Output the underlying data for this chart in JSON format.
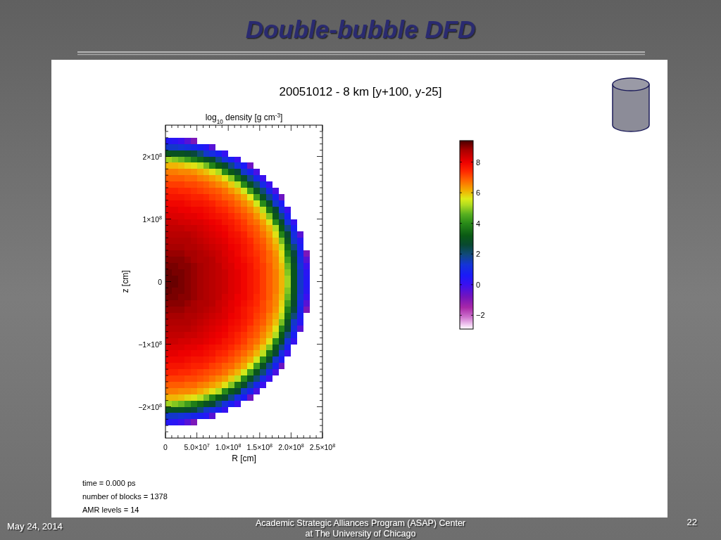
{
  "chart_data": {
    "type": "heatmap",
    "title": "Double-bubble DFD",
    "subtitle": "20051012 - 8 km [y+100, y-25]",
    "clabel": "log$_{10}$ density [g cm$^{-3}$]",
    "xlabel": "R [cm]",
    "ylabel": "z [cm]",
    "annotations": [
      "time = 0.000 ps",
      "number of blocks = 1378",
      "AMR levels = 14",
      "May 24, 2014",
      "Academic Strategic Alliances Program (ASAP) Center at The University of Chicago",
      "22"
    ],
    "xlim": [
      0,
      250000000.0
    ],
    "ylim": [
      -250000000.0,
      250000000.0
    ],
    "xticks": [
      0,
      {
        "value": 10000000.0,
        "label": null
      },
      {
        "value": 20000000.0,
        "label": null
      },
      {
        "value": 30000000.0,
        "label": null
      },
      {
        "value": 40000000.0,
        "label": null
      },
      {
        "value": 50000000.0,
        "label": "5.0×10$^{7}$"
      },
      {
        "value": 60000000.0,
        "label": null
      },
      {
        "value": 70000000.0,
        "label": null
      },
      {
        "value": 80000000.0,
        "label": null
      },
      {
        "value": 90000000.0,
        "label": null
      },
      {
        "value": 100000000.0,
        "label": "1.0×10$^{8}$"
      },
      {
        "value": 110000000.0,
        "label": null
      },
      {
        "value": 120000000.0,
        "label": null
      },
      {
        "value": 130000000.0,
        "label": null
      },
      {
        "value": 140000000.0,
        "label": null
      },
      {
        "value": 150000000.0,
        "label": "1.5×10$^{8}$"
      },
      {
        "value": 160000000.0,
        "label": null
      },
      {
        "value": 170000000.0,
        "label": null
      },
      {
        "value": 180000000.0,
        "label": null
      },
      {
        "value": 190000000.0,
        "label": null
      },
      {
        "value": 200000000.0,
        "label": "2.0×10$^{8}$"
      },
      {
        "value": 210000000.0,
        "label": null
      },
      {
        "value": 220000000.0,
        "label": null
      },
      {
        "value": 230000000.0,
        "label": null
      },
      {
        "value": 240000000.0,
        "label": null
      },
      {
        "value": 250000000.0,
        "label": "2.5×10$^{8}$"
      }
    ],
    "yticks": [
      {
        "value": -240000000.0,
        "label": null
      },
      {
        "value": -230000000.0,
        "label": null
      },
      {
        "value": -220000000.0,
        "label": null
      },
      {
        "value": -210000000.0,
        "label": null
      },
      {
        "value": -200000000.0,
        "label": "−2×10$^{8}$"
      },
      {
        "value": -190000000.0,
        "label": null
      },
      {
        "value": -180000000.0,
        "label": null
      },
      {
        "value": -170000000.0,
        "label": null
      },
      {
        "value": -160000000.0,
        "label": null
      },
      {
        "value": -150000000.0,
        "label": null
      },
      {
        "value": -140000000.0,
        "label": null
      },
      {
        "value": -130000000.0,
        "label": null
      },
      {
        "value": -120000000.0,
        "label": null
      },
      {
        "value": -110000000.0,
        "label": null
      },
      {
        "value": -100000000.0,
        "label": "−1×10$^{8}$"
      },
      {
        "value": -90000000.0,
        "label": null
      },
      {
        "value": -80000000.0,
        "label": null
      },
      {
        "value": -70000000.0,
        "label": null
      },
      {
        "value": -60000000.0,
        "label": null
      },
      {
        "value": -50000000.0,
        "label": null
      },
      {
        "value": -40000000.0,
        "label": null
      },
      {
        "value": -30000000.0,
        "label": null
      },
      {
        "value": -20000000.0,
        "label": null
      },
      {
        "value": -10000000.0,
        "label": null
      },
      0,
      {
        "value": 10000000.0,
        "label": null
      },
      {
        "value": 20000000.0,
        "label": null
      },
      {
        "value": 30000000.0,
        "label": null
      },
      {
        "value": 40000000.0,
        "label": null
      },
      {
        "value": 50000000.0,
        "label": null
      },
      {
        "value": 60000000.0,
        "label": null
      },
      {
        "value": 70000000.0,
        "label": null
      },
      {
        "value": 80000000.0,
        "label": null
      },
      {
        "value": 90000000.0,
        "label": null
      },
      {
        "value": 100000000.0,
        "label": "1×10$^{8}$"
      },
      {
        "value": 110000000.0,
        "label": null
      },
      {
        "value": 120000000.0,
        "label": null
      },
      {
        "value": 130000000.0,
        "label": null
      },
      {
        "value": 140000000.0,
        "label": null
      },
      {
        "value": 150000000.0,
        "label": null
      },
      {
        "value": 160000000.0,
        "label": null
      },
      {
        "value": 170000000.0,
        "label": null
      },
      {
        "value": 180000000.0,
        "label": null
      },
      {
        "value": 190000000.0,
        "label": null
      },
      {
        "value": 200000000.0,
        "label": "2×10$^{8}$"
      },
      {
        "value": 210000000.0,
        "label": null
      },
      {
        "value": 220000000.0,
        "label": null
      },
      {
        "value": 230000000.0,
        "label": null
      },
      {
        "value": 240000000.0,
        "label": null
      }
    ],
    "clim": [
      -2.9,
      9.4
    ],
    "cticks": [
      -2,
      0,
      2,
      4,
      6,
      8
    ],
    "cells": [
      [
        -2.9,
        -2.9,
        -2.9,
        -2.9,
        -2.9,
        -2.9,
        -2.9,
        -2.9,
        -2.9,
        -2.9,
        -2.9,
        -2.9,
        -2.9,
        -2.9,
        -2.9,
        -2.9,
        -2.9,
        -2.9,
        -2.9,
        -2.9,
        -2.9,
        -2.9,
        -2.9,
        -2.9,
        -2.9
      ],
      [
        -2.9,
        -2.9,
        -2.9,
        -2.9,
        -2.9,
        -2.9,
        -2.9,
        -2.9,
        -2.9,
        -2.9,
        -2.9,
        -2.9,
        -2.9,
        -2.9,
        -2.9,
        -2.9,
        -2.9,
        -2.9,
        -2.9,
        -2.9,
        -2.9,
        -2.9,
        -2.9,
        -2.9,
        -2.9
      ],
      [
        0.4,
        0.3,
        0.0,
        -0.4,
        -0.9,
        -2.9,
        -2.9,
        -2.9,
        -2.9,
        -2.9,
        -2.9,
        -2.9,
        -2.9,
        -2.9,
        -2.9,
        -2.9,
        -2.9,
        -2.9,
        -2.9,
        -2.9,
        -2.9,
        -2.9,
        -2.9,
        -2.9,
        -2.9
      ],
      [
        1.4,
        1.4,
        1.3,
        1.1,
        0.9,
        0.7,
        0.4,
        -0.4,
        -2.9,
        -2.9,
        -2.9,
        -2.9,
        -2.9,
        -2.9,
        -2.9,
        -2.9,
        -2.9,
        -2.9,
        -2.9,
        -2.9,
        -2.9,
        -2.9,
        -2.9,
        -2.9,
        -2.9
      ],
      [
        3.0,
        2.9,
        2.9,
        2.7,
        2.5,
        2.0,
        1.4,
        1.1,
        0.7,
        0.1,
        -2.9,
        -2.9,
        -2.9,
        -2.9,
        -2.9,
        -2.9,
        -2.9,
        -2.9,
        -2.9,
        -2.9,
        -2.9,
        -2.9,
        -2.9,
        -2.9,
        -2.9
      ],
      [
        5.1,
        4.9,
        4.7,
        4.3,
        3.8,
        3.4,
        2.9,
        2.6,
        1.9,
        1.2,
        0.7,
        0.0,
        -2.9,
        -2.9,
        -2.9,
        -2.9,
        -2.9,
        -2.9,
        -2.9,
        -2.9,
        -2.9,
        -2.9,
        -2.9,
        -2.9,
        -2.9
      ],
      [
        6.1,
        6.1,
        6.0,
        5.8,
        5.7,
        5.3,
        4.8,
        3.9,
        3.2,
        2.7,
        1.9,
        1.1,
        0.6,
        -0.7,
        -2.9,
        -2.9,
        -2.9,
        -2.9,
        -2.9,
        -2.9,
        -2.9,
        -2.9,
        -2.9,
        -2.9,
        -2.9
      ],
      [
        6.6,
        6.6,
        6.5,
        6.5,
        6.4,
        6.2,
        6.0,
        5.7,
        5.2,
        4.0,
        3.1,
        2.6,
        1.4,
        0.8,
        -0.2,
        -2.9,
        -2.9,
        -2.9,
        -2.9,
        -2.9,
        -2.9,
        -2.9,
        -2.9,
        -2.9,
        -2.9
      ],
      [
        6.9,
        6.9,
        6.9,
        6.8,
        6.8,
        6.6,
        6.5,
        6.3,
        6.1,
        5.7,
        4.9,
        3.6,
        2.8,
        1.8,
        0.9,
        0.0,
        -2.9,
        -2.9,
        -2.9,
        -2.9,
        -2.9,
        -2.9,
        -2.9,
        -2.9,
        -2.9
      ],
      [
        7.2,
        7.2,
        7.2,
        7.1,
        7.1,
        7.0,
        6.9,
        6.7,
        6.5,
        6.3,
        5.9,
        5.3,
        4.0,
        2.9,
        2.0,
        1.0,
        0.0,
        -2.9,
        -2.9,
        -2.9,
        -2.9,
        -2.9,
        -2.9,
        -2.9,
        -2.9
      ],
      [
        7.5,
        7.5,
        7.4,
        7.4,
        7.3,
        7.2,
        7.1,
        7.0,
        6.9,
        6.7,
        6.4,
        6.1,
        5.5,
        4.3,
        3.0,
        2.0,
        0.9,
        -0.2,
        -2.9,
        -2.9,
        -2.9,
        -2.9,
        -2.9,
        -2.9,
        -2.9
      ],
      [
        7.7,
        7.7,
        7.7,
        7.6,
        7.5,
        7.5,
        7.4,
        7.2,
        7.1,
        6.9,
        6.8,
        6.5,
        6.2,
        5.6,
        4.3,
        2.9,
        1.8,
        0.8,
        -0.7,
        -2.9,
        -2.9,
        -2.9,
        -2.9,
        -2.9,
        -2.9
      ],
      [
        7.9,
        7.9,
        7.9,
        7.8,
        7.7,
        7.7,
        7.6,
        7.5,
        7.3,
        7.2,
        7.0,
        6.8,
        6.5,
        6.2,
        5.5,
        4.0,
        2.8,
        1.4,
        0.6,
        -2.9,
        -2.9,
        -2.9,
        -2.9,
        -2.9,
        -2.9
      ],
      [
        8.1,
        8.1,
        8.0,
        8.0,
        7.9,
        7.9,
        7.8,
        7.7,
        7.5,
        7.4,
        7.2,
        7.0,
        6.8,
        6.5,
        6.1,
        5.3,
        3.6,
        2.6,
        1.1,
        0.0,
        -2.9,
        -2.9,
        -2.9,
        -2.9,
        -2.9
      ],
      [
        8.2,
        8.2,
        8.2,
        8.1,
        8.1,
        8.0,
        7.9,
        7.8,
        7.7,
        7.6,
        7.4,
        7.2,
        7.0,
        6.8,
        6.4,
        5.9,
        4.9,
        3.1,
        1.9,
        0.7,
        -2.9,
        -2.9,
        -2.9,
        -2.9,
        -2.9
      ],
      [
        8.4,
        8.4,
        8.3,
        8.3,
        8.2,
        8.2,
        8.1,
        8.0,
        7.9,
        7.7,
        7.6,
        7.4,
        7.2,
        6.9,
        6.7,
        6.3,
        5.7,
        4.0,
        2.7,
        1.2,
        0.1,
        -2.9,
        -2.9,
        -2.9,
        -2.9
      ],
      [
        8.5,
        8.5,
        8.5,
        8.4,
        8.4,
        8.3,
        8.2,
        8.1,
        8.0,
        7.9,
        7.7,
        7.5,
        7.3,
        7.1,
        6.9,
        6.5,
        6.1,
        5.2,
        3.2,
        1.9,
        0.7,
        -2.9,
        -2.9,
        -2.9,
        -2.9
      ],
      [
        8.6,
        8.6,
        8.6,
        8.6,
        8.5,
        8.4,
        8.3,
        8.2,
        8.1,
        8.0,
        7.8,
        7.7,
        7.5,
        7.2,
        7.0,
        6.7,
        6.3,
        5.7,
        3.9,
        2.6,
        1.1,
        -0.4,
        -2.9,
        -2.9,
        -2.9
      ],
      [
        8.7,
        8.7,
        8.7,
        8.7,
        8.6,
        8.5,
        8.4,
        8.3,
        8.2,
        8.1,
        7.9,
        7.8,
        7.6,
        7.4,
        7.1,
        6.9,
        6.5,
        6.0,
        4.8,
        2.9,
        1.4,
        0.4,
        -2.9,
        -2.9,
        -2.9
      ],
      [
        8.8,
        8.8,
        8.8,
        8.7,
        8.7,
        8.6,
        8.5,
        8.4,
        8.3,
        8.2,
        8.0,
        7.9,
        7.7,
        7.5,
        7.2,
        7.0,
        6.6,
        6.2,
        5.3,
        3.4,
        2.0,
        0.7,
        -2.9,
        -2.9,
        -2.9
      ],
      [
        8.9,
        8.9,
        8.9,
        8.8,
        8.8,
        8.7,
        8.6,
        8.5,
        8.4,
        8.2,
        8.1,
        7.9,
        7.7,
        7.5,
        7.3,
        7.1,
        6.8,
        6.4,
        5.7,
        3.8,
        2.5,
        0.9,
        -0.9,
        -2.9,
        -2.9
      ],
      [
        9.0,
        9.0,
        9.0,
        8.9,
        8.8,
        8.7,
        8.7,
        8.6,
        8.4,
        8.3,
        8.1,
        8.0,
        7.8,
        7.6,
        7.4,
        7.1,
        6.8,
        6.5,
        5.8,
        4.3,
        2.7,
        1.1,
        -0.4,
        -2.9,
        -2.9
      ],
      [
        9.1,
        9.1,
        9.0,
        9.0,
        8.9,
        8.8,
        8.7,
        8.6,
        8.5,
        8.3,
        8.2,
        8.0,
        7.9,
        7.7,
        7.4,
        7.2,
        6.9,
        6.5,
        6.0,
        4.7,
        2.9,
        1.3,
        0.0,
        -2.9,
        -2.9
      ],
      [
        9.2,
        9.1,
        9.1,
        9.0,
        8.9,
        8.8,
        8.7,
        8.6,
        8.5,
        8.4,
        8.2,
        8.1,
        7.9,
        7.7,
        7.5,
        7.2,
        6.9,
        6.6,
        6.1,
        4.9,
        3.0,
        1.4,
        0.3,
        -2.9,
        -2.9
      ],
      [
        9.2,
        9.2,
        9.1,
        9.0,
        8.9,
        8.8,
        8.7,
        8.6,
        8.5,
        8.4,
        8.2,
        8.1,
        7.9,
        7.7,
        7.5,
        7.2,
        6.9,
        6.6,
        6.1,
        5.1,
        3.0,
        1.4,
        0.4,
        -2.9,
        -2.9
      ],
      [
        9.2,
        9.2,
        9.1,
        9.0,
        8.9,
        8.8,
        8.7,
        8.6,
        8.5,
        8.4,
        8.2,
        8.1,
        7.9,
        7.7,
        7.5,
        7.2,
        6.9,
        6.6,
        6.1,
        5.1,
        3.0,
        1.4,
        0.4,
        -2.9,
        -2.9
      ],
      [
        9.2,
        9.1,
        9.1,
        9.0,
        8.9,
        8.8,
        8.7,
        8.6,
        8.5,
        8.4,
        8.2,
        8.1,
        7.9,
        7.7,
        7.5,
        7.2,
        6.9,
        6.6,
        6.1,
        4.9,
        3.0,
        1.4,
        0.3,
        -2.9,
        -2.9
      ],
      [
        9.1,
        9.1,
        9.0,
        9.0,
        8.9,
        8.8,
        8.7,
        8.6,
        8.5,
        8.3,
        8.2,
        8.0,
        7.9,
        7.7,
        7.4,
        7.2,
        6.9,
        6.5,
        6.0,
        4.7,
        2.9,
        1.3,
        0.0,
        -2.9,
        -2.9
      ],
      [
        9.0,
        9.0,
        9.0,
        8.9,
        8.8,
        8.7,
        8.7,
        8.6,
        8.4,
        8.3,
        8.1,
        8.0,
        7.8,
        7.6,
        7.4,
        7.1,
        6.8,
        6.5,
        5.8,
        4.3,
        2.7,
        1.1,
        -0.4,
        -2.9,
        -2.9
      ],
      [
        8.9,
        8.9,
        8.9,
        8.8,
        8.8,
        8.7,
        8.6,
        8.5,
        8.4,
        8.2,
        8.1,
        7.9,
        7.7,
        7.5,
        7.3,
        7.1,
        6.8,
        6.4,
        5.7,
        3.8,
        2.5,
        0.9,
        -0.9,
        -2.9,
        -2.9
      ],
      [
        8.8,
        8.8,
        8.8,
        8.7,
        8.7,
        8.6,
        8.5,
        8.4,
        8.3,
        8.2,
        8.0,
        7.9,
        7.7,
        7.5,
        7.2,
        7.0,
        6.6,
        6.2,
        5.3,
        3.4,
        2.0,
        0.7,
        -2.9,
        -2.9,
        -2.9
      ],
      [
        8.7,
        8.7,
        8.7,
        8.7,
        8.6,
        8.5,
        8.4,
        8.3,
        8.2,
        8.1,
        7.9,
        7.8,
        7.6,
        7.4,
        7.1,
        6.9,
        6.5,
        6.0,
        4.8,
        2.9,
        1.4,
        0.4,
        -2.9,
        -2.9,
        -2.9
      ],
      [
        8.6,
        8.6,
        8.6,
        8.6,
        8.5,
        8.4,
        8.3,
        8.2,
        8.1,
        8.0,
        7.8,
        7.7,
        7.5,
        7.2,
        7.0,
        6.7,
        6.3,
        5.7,
        3.9,
        2.6,
        1.1,
        -0.4,
        -2.9,
        -2.9,
        -2.9
      ],
      [
        8.5,
        8.5,
        8.5,
        8.4,
        8.4,
        8.3,
        8.2,
        8.1,
        8.0,
        7.9,
        7.7,
        7.5,
        7.3,
        7.1,
        6.9,
        6.5,
        6.1,
        5.2,
        3.2,
        1.9,
        0.7,
        -2.9,
        -2.9,
        -2.9,
        -2.9
      ],
      [
        8.4,
        8.4,
        8.3,
        8.3,
        8.2,
        8.2,
        8.1,
        8.0,
        7.9,
        7.7,
        7.6,
        7.4,
        7.2,
        6.9,
        6.7,
        6.3,
        5.7,
        4.0,
        2.7,
        1.2,
        0.1,
        -2.9,
        -2.9,
        -2.9,
        -2.9
      ],
      [
        8.2,
        8.2,
        8.2,
        8.1,
        8.1,
        8.0,
        7.9,
        7.8,
        7.7,
        7.6,
        7.4,
        7.2,
        7.0,
        6.8,
        6.4,
        5.9,
        4.9,
        3.1,
        1.9,
        0.7,
        -2.9,
        -2.9,
        -2.9,
        -2.9,
        -2.9
      ],
      [
        8.1,
        8.1,
        8.0,
        8.0,
        7.9,
        7.9,
        7.8,
        7.7,
        7.5,
        7.4,
        7.2,
        7.0,
        6.8,
        6.5,
        6.1,
        5.3,
        3.6,
        2.6,
        1.1,
        0.0,
        -2.9,
        -2.9,
        -2.9,
        -2.9,
        -2.9
      ],
      [
        7.9,
        7.9,
        7.9,
        7.8,
        7.7,
        7.7,
        7.6,
        7.5,
        7.3,
        7.2,
        7.0,
        6.8,
        6.5,
        6.2,
        5.5,
        4.0,
        2.8,
        1.4,
        0.6,
        -2.9,
        -2.9,
        -2.9,
        -2.9,
        -2.9,
        -2.9
      ],
      [
        7.7,
        7.7,
        7.7,
        7.6,
        7.5,
        7.5,
        7.4,
        7.2,
        7.1,
        6.9,
        6.8,
        6.5,
        6.2,
        5.6,
        4.3,
        2.9,
        1.8,
        0.8,
        -0.7,
        -2.9,
        -2.9,
        -2.9,
        -2.9,
        -2.9,
        -2.9
      ],
      [
        7.5,
        7.5,
        7.4,
        7.4,
        7.3,
        7.2,
        7.1,
        7.0,
        6.9,
        6.7,
        6.4,
        6.1,
        5.5,
        4.3,
        3.0,
        2.0,
        0.9,
        -0.2,
        -2.9,
        -2.9,
        -2.9,
        -2.9,
        -2.9,
        -2.9,
        -2.9
      ],
      [
        7.2,
        7.2,
        7.2,
        7.1,
        7.1,
        7.0,
        6.9,
        6.7,
        6.5,
        6.3,
        5.9,
        5.3,
        4.0,
        2.9,
        2.0,
        1.0,
        0.0,
        -2.9,
        -2.9,
        -2.9,
        -2.9,
        -2.9,
        -2.9,
        -2.9,
        -2.9
      ],
      [
        6.9,
        6.9,
        6.9,
        6.8,
        6.8,
        6.6,
        6.5,
        6.3,
        6.1,
        5.7,
        4.9,
        3.6,
        2.8,
        1.8,
        0.9,
        0.0,
        -2.9,
        -2.9,
        -2.9,
        -2.9,
        -2.9,
        -2.9,
        -2.9,
        -2.9,
        -2.9
      ],
      [
        6.6,
        6.6,
        6.5,
        6.5,
        6.4,
        6.2,
        6.0,
        5.7,
        5.2,
        4.0,
        3.1,
        2.6,
        1.4,
        0.8,
        -0.2,
        -2.9,
        -2.9,
        -2.9,
        -2.9,
        -2.9,
        -2.9,
        -2.9,
        -2.9,
        -2.9,
        -2.9
      ],
      [
        6.1,
        6.1,
        6.0,
        5.8,
        5.7,
        5.3,
        4.8,
        3.9,
        3.2,
        2.7,
        1.9,
        1.1,
        0.6,
        -0.7,
        -2.9,
        -2.9,
        -2.9,
        -2.9,
        -2.9,
        -2.9,
        -2.9,
        -2.9,
        -2.9,
        -2.9,
        -2.9
      ],
      [
        5.1,
        4.9,
        4.7,
        4.3,
        3.8,
        3.4,
        2.9,
        2.6,
        1.9,
        1.2,
        0.7,
        0.0,
        -2.9,
        -2.9,
        -2.9,
        -2.9,
        -2.9,
        -2.9,
        -2.9,
        -2.9,
        -2.9,
        -2.9,
        -2.9,
        -2.9,
        -2.9
      ],
      [
        3.0,
        2.9,
        2.9,
        2.7,
        2.5,
        2.0,
        1.4,
        1.1,
        0.7,
        0.1,
        -2.9,
        -2.9,
        -2.9,
        -2.9,
        -2.9,
        -2.9,
        -2.9,
        -2.9,
        -2.9,
        -2.9,
        -2.9,
        -2.9,
        -2.9,
        -2.9,
        -2.9
      ],
      [
        1.4,
        1.4,
        1.3,
        1.1,
        0.9,
        0.7,
        0.4,
        -0.4,
        -2.9,
        -2.9,
        -2.9,
        -2.9,
        -2.9,
        -2.9,
        -2.9,
        -2.9,
        -2.9,
        -2.9,
        -2.9,
        -2.9,
        -2.9,
        -2.9,
        -2.9,
        -2.9,
        -2.9
      ],
      [
        0.4,
        0.3,
        0.0,
        -0.4,
        -0.9,
        -2.9,
        -2.9,
        -2.9,
        -2.9,
        -2.9,
        -2.9,
        -2.9,
        -2.9,
        -2.9,
        -2.9,
        -2.9,
        -2.9,
        -2.9,
        -2.9,
        -2.9,
        -2.9,
        -2.9,
        -2.9,
        -2.9,
        -2.9
      ],
      [
        -2.9,
        -2.9,
        -2.9,
        -2.9,
        -2.9,
        -2.9,
        -2.9,
        -2.9,
        -2.9,
        -2.9,
        -2.9,
        -2.9,
        -2.9,
        -2.9,
        -2.9,
        -2.9,
        -2.9,
        -2.9,
        -2.9,
        -2.9,
        -2.9,
        -2.9,
        -2.9,
        -2.9,
        -2.9
      ],
      [
        -2.9,
        -2.9,
        -2.9,
        -2.9,
        -2.9,
        -2.9,
        -2.9,
        -2.9,
        -2.9,
        -2.9,
        -2.9,
        -2.9,
        -2.9,
        -2.9,
        -2.9,
        -2.9,
        -2.9,
        -2.9,
        -2.9,
        -2.9,
        -2.9,
        -2.9,
        -2.9,
        -2.9,
        -2.9
      ]
    ]
  }
}
